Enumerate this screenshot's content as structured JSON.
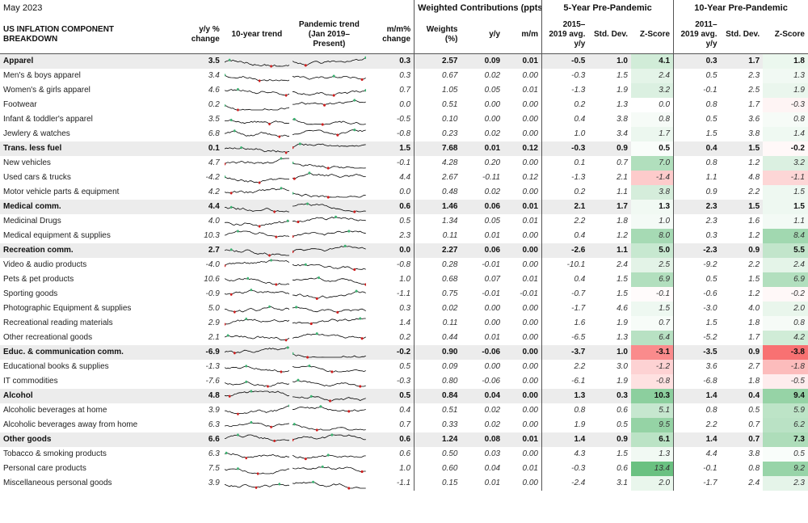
{
  "period": "May 2023",
  "group_headers": {
    "weighted": "Weighted Contributions (ppts)*",
    "five": "5-Year Pre-Pandemic",
    "ten": "10-Year Pre-Pandemic"
  },
  "headers": {
    "component": "US INFLATION COMPONENT BREAKDOWN",
    "yy_change": "y/y % change",
    "trend10": "10-year trend",
    "pandemic": "Pandemic trend (Jan 2019–Present)",
    "mm_change": "m/m% change",
    "weights": "Weights (%)",
    "yy": "y/y",
    "mm": "m/m",
    "avg5": "2015–2019 avg. y/y",
    "sd5": "Std. Dev.",
    "z5": "Z-Score",
    "avg10": "2011–2019 avg. y/y",
    "sd10": "Std. Dev.",
    "z10": "Z-Score"
  },
  "colors": {
    "category_bg": "#ececec",
    "z_pos_strong": "#63be7b",
    "z_neg_strong": "#f8696b",
    "spark_line": "#000000",
    "spark_high": "#3cb371",
    "spark_low": "#d11e1e"
  },
  "rows": [
    {
      "name": "Apparel",
      "cat": true,
      "yy": "3.5",
      "mm": "0.3",
      "w": "2.57",
      "cy": "0.09",
      "cm": "0.01",
      "a5": "-0.5",
      "s5": "1.0",
      "z5": "4.1",
      "a10": "0.3",
      "s10": "1.7",
      "z10": "1.8"
    },
    {
      "name": "Men's & boys apparel",
      "cat": false,
      "yy": "3.4",
      "mm": "0.3",
      "w": "0.67",
      "cy": "0.02",
      "cm": "0.00",
      "a5": "-0.3",
      "s5": "1.5",
      "z5": "2.4",
      "a10": "0.5",
      "s10": "2.3",
      "z10": "1.3"
    },
    {
      "name": "Women's & girls apparel",
      "cat": false,
      "yy": "4.6",
      "mm": "0.7",
      "w": "1.05",
      "cy": "0.05",
      "cm": "0.01",
      "a5": "-1.3",
      "s5": "1.9",
      "z5": "3.2",
      "a10": "-0.1",
      "s10": "2.5",
      "z10": "1.9"
    },
    {
      "name": "Footwear",
      "cat": false,
      "yy": "0.2",
      "mm": "0.0",
      "w": "0.51",
      "cy": "0.00",
      "cm": "0.00",
      "a5": "0.2",
      "s5": "1.3",
      "z5": "0.0",
      "a10": "0.8",
      "s10": "1.7",
      "z10": "-0.3"
    },
    {
      "name": "Infant & toddler's apparel",
      "cat": false,
      "yy": "3.5",
      "mm": "-0.5",
      "w": "0.10",
      "cy": "0.00",
      "cm": "0.00",
      "a5": "0.4",
      "s5": "3.8",
      "z5": "0.8",
      "a10": "0.5",
      "s10": "3.6",
      "z10": "0.8"
    },
    {
      "name": "Jewlery & watches",
      "cat": false,
      "yy": "6.8",
      "mm": "-0.8",
      "w": "0.23",
      "cy": "0.02",
      "cm": "0.00",
      "a5": "1.0",
      "s5": "3.4",
      "z5": "1.7",
      "a10": "1.5",
      "s10": "3.8",
      "z10": "1.4"
    },
    {
      "name": "Trans. less fuel",
      "cat": true,
      "yy": "0.1",
      "mm": "1.5",
      "w": "7.68",
      "cy": "0.01",
      "cm": "0.12",
      "a5": "-0.3",
      "s5": "0.9",
      "z5": "0.5",
      "a10": "0.4",
      "s10": "1.5",
      "z10": "-0.2"
    },
    {
      "name": "New vehicles",
      "cat": false,
      "yy": "4.7",
      "mm": "-0.1",
      "w": "4.28",
      "cy": "0.20",
      "cm": "0.00",
      "a5": "0.1",
      "s5": "0.7",
      "z5": "7.0",
      "a10": "0.8",
      "s10": "1.2",
      "z10": "3.2"
    },
    {
      "name": "Used cars & trucks",
      "cat": false,
      "yy": "-4.2",
      "mm": "4.4",
      "w": "2.67",
      "cy": "-0.11",
      "cm": "0.12",
      "a5": "-1.3",
      "s5": "2.1",
      "z5": "-1.4",
      "a10": "1.1",
      "s10": "4.8",
      "z10": "-1.1"
    },
    {
      "name": "Motor vehicle parts & equipment",
      "cat": false,
      "yy": "4.2",
      "mm": "0.0",
      "w": "0.48",
      "cy": "0.02",
      "cm": "0.00",
      "a5": "0.2",
      "s5": "1.1",
      "z5": "3.8",
      "a10": "0.9",
      "s10": "2.2",
      "z10": "1.5"
    },
    {
      "name": "Medical comm.",
      "cat": true,
      "yy": "4.4",
      "mm": "0.6",
      "w": "1.46",
      "cy": "0.06",
      "cm": "0.01",
      "a5": "2.1",
      "s5": "1.7",
      "z5": "1.3",
      "a10": "2.3",
      "s10": "1.5",
      "z10": "1.5"
    },
    {
      "name": "Medicinal Drugs",
      "cat": false,
      "yy": "4.0",
      "mm": "0.5",
      "w": "1.34",
      "cy": "0.05",
      "cm": "0.01",
      "a5": "2.2",
      "s5": "1.8",
      "z5": "1.0",
      "a10": "2.3",
      "s10": "1.6",
      "z10": "1.1"
    },
    {
      "name": "Medical equipment & supplies",
      "cat": false,
      "yy": "10.3",
      "mm": "2.3",
      "w": "0.11",
      "cy": "0.01",
      "cm": "0.00",
      "a5": "0.4",
      "s5": "1.2",
      "z5": "8.0",
      "a10": "0.3",
      "s10": "1.2",
      "z10": "8.4"
    },
    {
      "name": "Recreation comm.",
      "cat": true,
      "yy": "2.7",
      "mm": "0.0",
      "w": "2.27",
      "cy": "0.06",
      "cm": "0.00",
      "a5": "-2.6",
      "s5": "1.1",
      "z5": "5.0",
      "a10": "-2.3",
      "s10": "0.9",
      "z10": "5.5"
    },
    {
      "name": "Video & audio products",
      "cat": false,
      "yy": "-4.0",
      "mm": "-0.8",
      "w": "0.28",
      "cy": "-0.01",
      "cm": "0.00",
      "a5": "-10.1",
      "s5": "2.4",
      "z5": "2.5",
      "a10": "-9.2",
      "s10": "2.2",
      "z10": "2.4"
    },
    {
      "name": "Pets & pet products",
      "cat": false,
      "yy": "10.6",
      "mm": "1.0",
      "w": "0.68",
      "cy": "0.07",
      "cm": "0.01",
      "a5": "0.4",
      "s5": "1.5",
      "z5": "6.9",
      "a10": "0.5",
      "s10": "1.5",
      "z10": "6.9"
    },
    {
      "name": "Sporting goods",
      "cat": false,
      "yy": "-0.9",
      "mm": "-1.1",
      "w": "0.75",
      "cy": "-0.01",
      "cm": "-0.01",
      "a5": "-0.7",
      "s5": "1.5",
      "z5": "-0.1",
      "a10": "-0.6",
      "s10": "1.2",
      "z10": "-0.2"
    },
    {
      "name": "Photographic Equipment & supplies",
      "cat": false,
      "yy": "5.0",
      "mm": "0.3",
      "w": "0.02",
      "cy": "0.00",
      "cm": "0.00",
      "a5": "-1.7",
      "s5": "4.6",
      "z5": "1.5",
      "a10": "-3.0",
      "s10": "4.0",
      "z10": "2.0"
    },
    {
      "name": "Recreational reading materials",
      "cat": false,
      "yy": "2.9",
      "mm": "1.4",
      "w": "0.11",
      "cy": "0.00",
      "cm": "0.00",
      "a5": "1.6",
      "s5": "1.9",
      "z5": "0.7",
      "a10": "1.5",
      "s10": "1.8",
      "z10": "0.8"
    },
    {
      "name": "Other recreational goods",
      "cat": false,
      "yy": "2.1",
      "mm": "0.2",
      "w": "0.44",
      "cy": "0.01",
      "cm": "0.00",
      "a5": "-6.5",
      "s5": "1.3",
      "z5": "6.4",
      "a10": "-5.2",
      "s10": "1.7",
      "z10": "4.2"
    },
    {
      "name": "Educ. & communication comm.",
      "cat": true,
      "yy": "-6.9",
      "mm": "-0.2",
      "w": "0.90",
      "cy": "-0.06",
      "cm": "0.00",
      "a5": "-3.7",
      "s5": "1.0",
      "z5": "-3.1",
      "a10": "-3.5",
      "s10": "0.9",
      "z10": "-3.8"
    },
    {
      "name": "Educational books & supplies",
      "cat": false,
      "yy": "-1.3",
      "mm": "0.5",
      "w": "0.09",
      "cy": "0.00",
      "cm": "0.00",
      "a5": "2.2",
      "s5": "3.0",
      "z5": "-1.2",
      "a10": "3.6",
      "s10": "2.7",
      "z10": "-1.8"
    },
    {
      "name": "IT commodities",
      "cat": false,
      "yy": "-7.6",
      "mm": "-0.3",
      "w": "0.80",
      "cy": "-0.06",
      "cm": "0.00",
      "a5": "-6.1",
      "s5": "1.9",
      "z5": "-0.8",
      "a10": "-6.8",
      "s10": "1.8",
      "z10": "-0.5"
    },
    {
      "name": "Alcohol",
      "cat": true,
      "yy": "4.8",
      "mm": "0.5",
      "w": "0.84",
      "cy": "0.04",
      "cm": "0.00",
      "a5": "1.3",
      "s5": "0.3",
      "z5": "10.3",
      "a10": "1.4",
      "s10": "0.4",
      "z10": "9.4"
    },
    {
      "name": "Alcoholic beverages at home",
      "cat": false,
      "yy": "3.9",
      "mm": "0.4",
      "w": "0.51",
      "cy": "0.02",
      "cm": "0.00",
      "a5": "0.8",
      "s5": "0.6",
      "z5": "5.1",
      "a10": "0.8",
      "s10": "0.5",
      "z10": "5.9"
    },
    {
      "name": "Alcoholic beverages away from home",
      "cat": false,
      "yy": "6.3",
      "mm": "0.7",
      "w": "0.33",
      "cy": "0.02",
      "cm": "0.00",
      "a5": "1.9",
      "s5": "0.5",
      "z5": "9.5",
      "a10": "2.2",
      "s10": "0.7",
      "z10": "6.2"
    },
    {
      "name": "Other goods",
      "cat": true,
      "yy": "6.6",
      "mm": "0.6",
      "w": "1.24",
      "cy": "0.08",
      "cm": "0.01",
      "a5": "1.4",
      "s5": "0.9",
      "z5": "6.1",
      "a10": "1.4",
      "s10": "0.7",
      "z10": "7.3"
    },
    {
      "name": "Tobacco & smoking products",
      "cat": false,
      "yy": "6.3",
      "mm": "0.6",
      "w": "0.50",
      "cy": "0.03",
      "cm": "0.00",
      "a5": "4.3",
      "s5": "1.5",
      "z5": "1.3",
      "a10": "4.4",
      "s10": "3.8",
      "z10": "0.5"
    },
    {
      "name": "Personal care products",
      "cat": false,
      "yy": "7.5",
      "mm": "1.0",
      "w": "0.60",
      "cy": "0.04",
      "cm": "0.01",
      "a5": "-0.3",
      "s5": "0.6",
      "z5": "13.4",
      "a10": "-0.1",
      "s10": "0.8",
      "z10": "9.2"
    },
    {
      "name": "Miscellaneous personal goods",
      "cat": false,
      "yy": "3.9",
      "mm": "-1.1",
      "w": "0.15",
      "cy": "0.01",
      "cm": "0.00",
      "a5": "-2.4",
      "s5": "3.1",
      "z5": "2.0",
      "a10": "-1.7",
      "s10": "2.4",
      "z10": "2.3"
    }
  ]
}
